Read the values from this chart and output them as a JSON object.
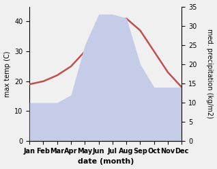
{
  "months": [
    "Jan",
    "Feb",
    "Mar",
    "Apr",
    "May",
    "Jun",
    "Jul",
    "Aug",
    "Sep",
    "Oct",
    "Nov",
    "Dec"
  ],
  "temperature": [
    19,
    20,
    22,
    25,
    30,
    36,
    40,
    41,
    37,
    30,
    23,
    18
  ],
  "precipitation": [
    10,
    10,
    10,
    12,
    25,
    33,
    33,
    32,
    20,
    14,
    14,
    14
  ],
  "temp_color": "#c0504d",
  "precip_fill_color": "#c5cce8",
  "temp_ylim": [
    0,
    45
  ],
  "precip_ylim": [
    0,
    35
  ],
  "xlabel": "date (month)",
  "ylabel_left": "max temp (C)",
  "ylabel_right": "med. precipitation (kg/m2)",
  "bg_color": "#f0f0f0",
  "left_yticks": [
    0,
    10,
    20,
    30,
    40
  ],
  "right_yticks": [
    0,
    5,
    10,
    15,
    20,
    25,
    30,
    35
  ]
}
